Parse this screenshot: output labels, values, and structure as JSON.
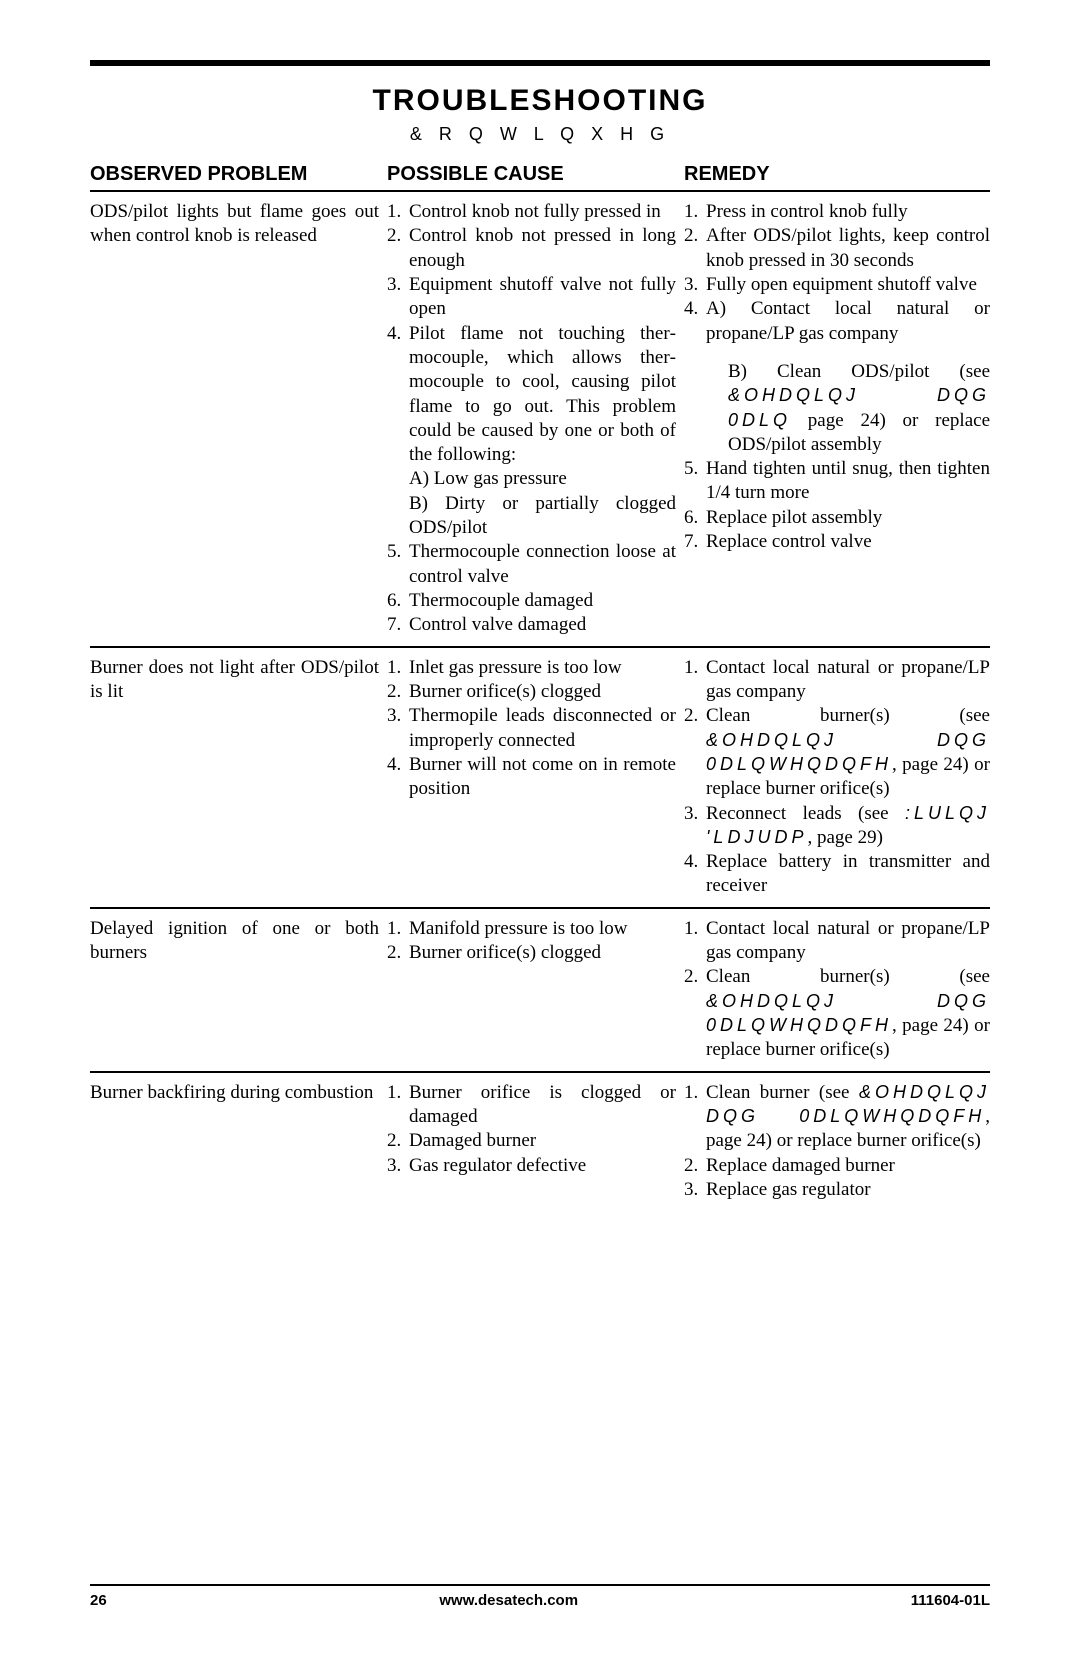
{
  "title": "TROUBLESHOOTING",
  "subtitle": "& R Q W L Q X H G",
  "headers": {
    "c1": "OBSERVED PROBLEM",
    "c2": "POSSIBLE CAUSE",
    "c3": "REMEDY"
  },
  "sections": [
    {
      "problem": "ODS/pilot lights but flame goes out when control knob is re­leased",
      "causes": [
        "Control knob not fully pressed in",
        "Control knob not pressed in long enough",
        "Equipment shutoff valve not fully open",
        "Pilot flame not touching ther­mocouple, which allows ther­mocouple to cool, causing pilot flame to go out. This problem could be caused by one or both of the following:\nA) Low gas pressure\nB) Dirty or partially clogged ODS/pilot",
        "Thermocouple connection loose at control valve",
        "Thermocouple damaged",
        "Control valve damaged"
      ],
      "remedies": [
        "Press in control knob fully",
        "After ODS/pilot lights, keep control knob pressed in 30 seconds",
        "Fully open equipment shutoff valve",
        "A) Contact local natural or propane/LP gas company\n\nB) Clean ODS/pilot (see <g>&OHDQLQJ DQG 0DLQ</g> page 24) or replace ODS/pilot assembly",
        "Hand tighten until snug, then tighten 1/4 turn more",
        "Replace pilot assembly",
        "Replace control valve"
      ]
    },
    {
      "problem": "Burner does not light after ODS/pilot is lit",
      "causes": [
        "Inlet gas pressure is too low",
        "Burner orifice(s) clogged",
        "Thermopile leads disconnect­ed or improperly connected",
        "Burner will not come on in remote position"
      ],
      "remedies": [
        "Contact local natural or pro­pane/LP gas company",
        "Clean burner(s) (see <g>&OHDQLQJ DQG 0DLQWHQDQFH</g>, page 24) or replace burner orifice(s)",
        "Reconnect leads (see <g>:LULQJ 'LDJUDP</g>, page 29)",
        "Replace battery in transmitter and receiver"
      ]
    },
    {
      "problem": "Delayed ignition of one or both burners",
      "causes": [
        "Manifold pressure is too low",
        "Burner orifice(s) clogged"
      ],
      "remedies": [
        "Contact local natural or pro­pane/LP gas company",
        "Clean burner(s) (see <g>&OHDQLQJ DQG 0DLQWHQDQFH</g>, page 24) or replace burner orifice(s)"
      ]
    },
    {
      "problem": "Burner backfiring during com­bustion",
      "causes": [
        "Burner orifice is clogged or damaged",
        "Damaged burner",
        "Gas regulator defective"
      ],
      "remedies": [
        "Clean burner (see <g>&OHDQLQJ DQG 0DLQWHQDQFH</g>, page 24) or replace burner orifice(s)",
        "Replace damaged burner",
        "Replace gas regulator"
      ]
    }
  ],
  "footer": {
    "page": "26",
    "url": "www.desatech.com",
    "code": "111604-01L"
  }
}
